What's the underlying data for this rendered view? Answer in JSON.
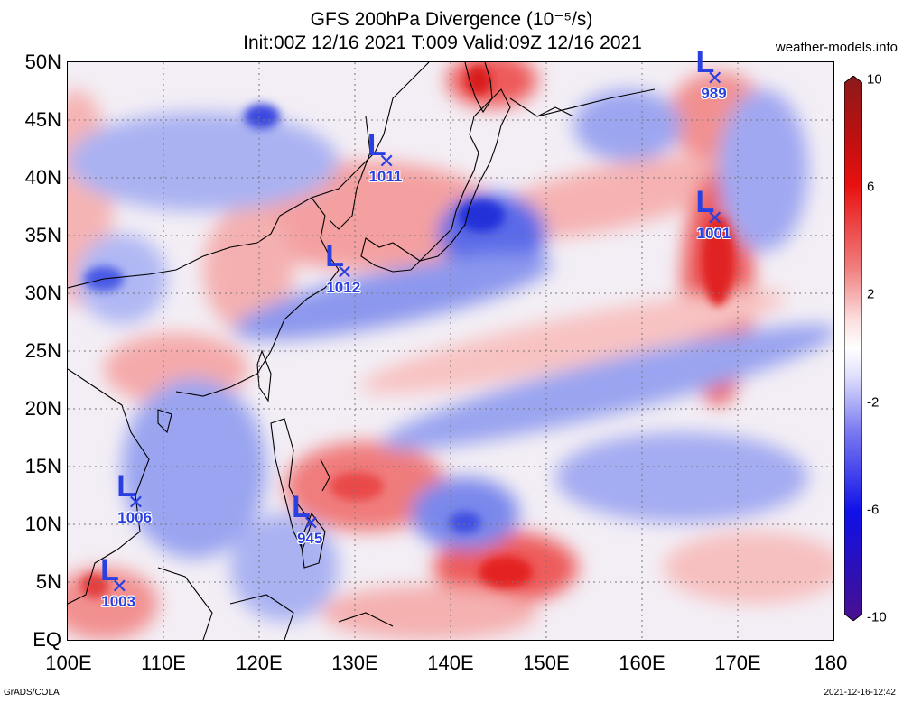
{
  "header": {
    "title": "GFS 200hPa Divergence (10⁻⁵/s)",
    "subtitle": "Init:00Z 12/16 2021 T:009 Valid:09Z 12/16 2021",
    "site": "weather-models.info"
  },
  "map": {
    "lat_labels": [
      "50N",
      "45N",
      "40N",
      "35N",
      "30N",
      "25N",
      "20N",
      "15N",
      "10N",
      "5N",
      "EQ"
    ],
    "lon_labels": [
      "100E",
      "110E",
      "120E",
      "130E",
      "140E",
      "150E",
      "160E",
      "170E",
      "180"
    ],
    "lon_range": [
      100,
      180
    ],
    "lat_range": [
      0,
      50
    ]
  },
  "colorbar": {
    "labels": [
      "10",
      "6",
      "2",
      "-2",
      "-6",
      "-10"
    ],
    "colors": [
      "#8b1a1a",
      "#e01010",
      "#f08080",
      "#fde8e8",
      "#ffffff",
      "#e8e8fd",
      "#8080f0",
      "#1010e0",
      "#4a1090"
    ]
  },
  "lows": [
    {
      "label": "L",
      "pressure": "1011",
      "lon": 133.2,
      "lat": 41.3
    },
    {
      "label": "L",
      "pressure": "1012",
      "lon": 128.8,
      "lat": 31.7
    },
    {
      "label": "L",
      "pressure": "989",
      "lon": 167.5,
      "lat": 48.5
    },
    {
      "label": "L",
      "pressure": "1001",
      "lon": 167.5,
      "lat": 36.4
    },
    {
      "label": "L",
      "pressure": "1006",
      "lon": 107.0,
      "lat": 11.8
    },
    {
      "label": "L",
      "pressure": "945",
      "lon": 125.3,
      "lat": 10.0
    },
    {
      "label": "L",
      "pressure": "1003",
      "lon": 105.3,
      "lat": 4.5
    }
  ],
  "footer": {
    "left": "GrADS/COLA",
    "right": "2021-12-16-12:42"
  }
}
